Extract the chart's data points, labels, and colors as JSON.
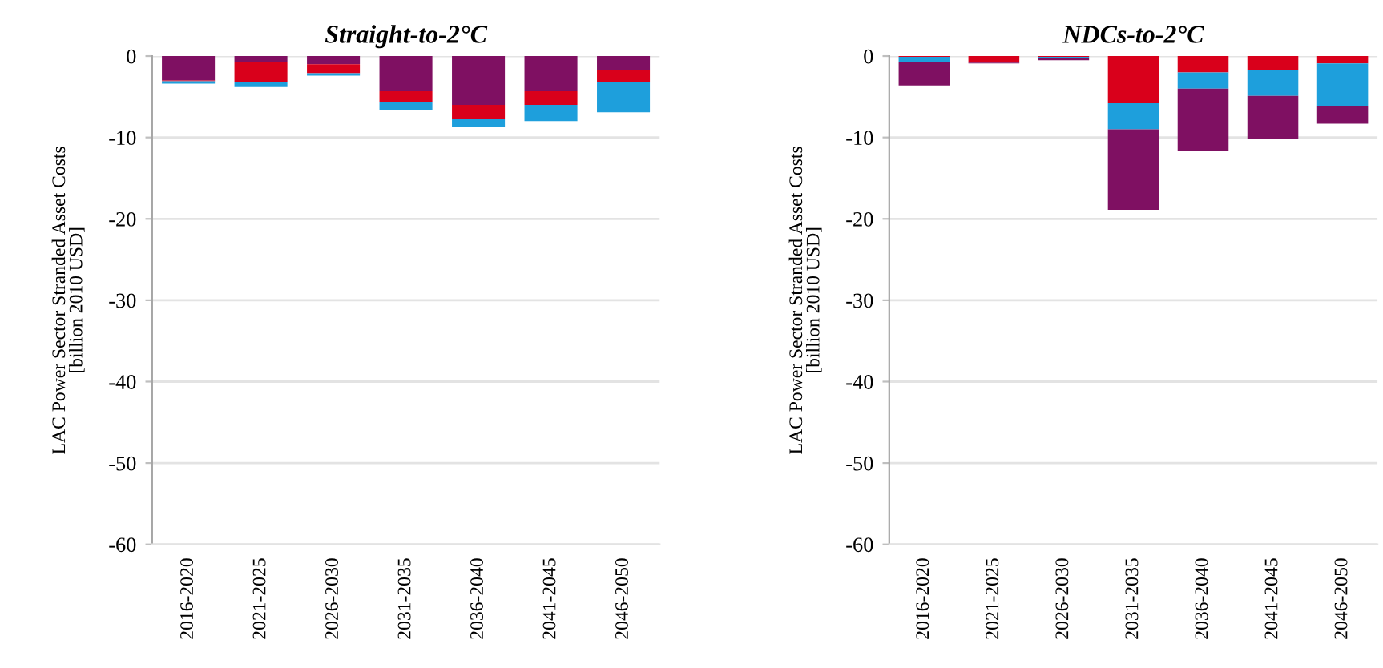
{
  "chart_data": [
    {
      "type": "bar",
      "title": "Straight-to-2°C",
      "ylabel": "LAC Power Sector Stranded Asset Costs\n[billion 2010 USD]",
      "categories": [
        "2016-2020",
        "2021-2025",
        "2026-2030",
        "2031-2035",
        "2036-2040",
        "2041-2045",
        "2046-2050"
      ],
      "stacked": true,
      "series": [
        {
          "color": "#7f1062",
          "values": [
            -3.0,
            -0.7,
            -1.0,
            -4.3,
            -6.0,
            -4.3,
            -1.7
          ]
        },
        {
          "color": "#d9001b",
          "values": [
            -0.1,
            -2.5,
            -1.1,
            -1.3,
            -1.7,
            -1.7,
            -1.5
          ]
        },
        {
          "color": "#1e9fdc",
          "values": [
            -0.3,
            -0.5,
            -0.3,
            -1.0,
            -1.0,
            -2.0,
            -3.7
          ]
        }
      ],
      "ylim": [
        -60,
        0
      ],
      "yticks": [
        0,
        -10,
        -20,
        -30,
        -40,
        -50,
        -60
      ],
      "grid": "y"
    },
    {
      "type": "bar",
      "title": "NDCs-to-2°C",
      "ylabel": "LAC Power Sector Stranded Asset Costs\n[billion 2010 USD]",
      "categories": [
        "2016-2020",
        "2021-2025",
        "2026-2030",
        "2031-2035",
        "2036-2040",
        "2041-2045",
        "2046-2050"
      ],
      "stacked": true,
      "series": [
        {
          "color": "#d9001b",
          "values": [
            -0.1,
            -0.8,
            -0.1,
            -5.7,
            -2.0,
            -1.7,
            -0.9
          ]
        },
        {
          "color": "#1e9fdc",
          "values": [
            -0.6,
            0,
            -0.1,
            -3.3,
            -2.0,
            -3.2,
            -5.2
          ]
        },
        {
          "color": "#7f1062",
          "values": [
            -2.9,
            -0.1,
            -0.3,
            -9.9,
            -7.7,
            -5.3,
            -2.2
          ]
        }
      ],
      "ylim": [
        -60,
        0
      ],
      "yticks": [
        0,
        -10,
        -20,
        -30,
        -40,
        -50,
        -60
      ],
      "grid": "y"
    }
  ]
}
